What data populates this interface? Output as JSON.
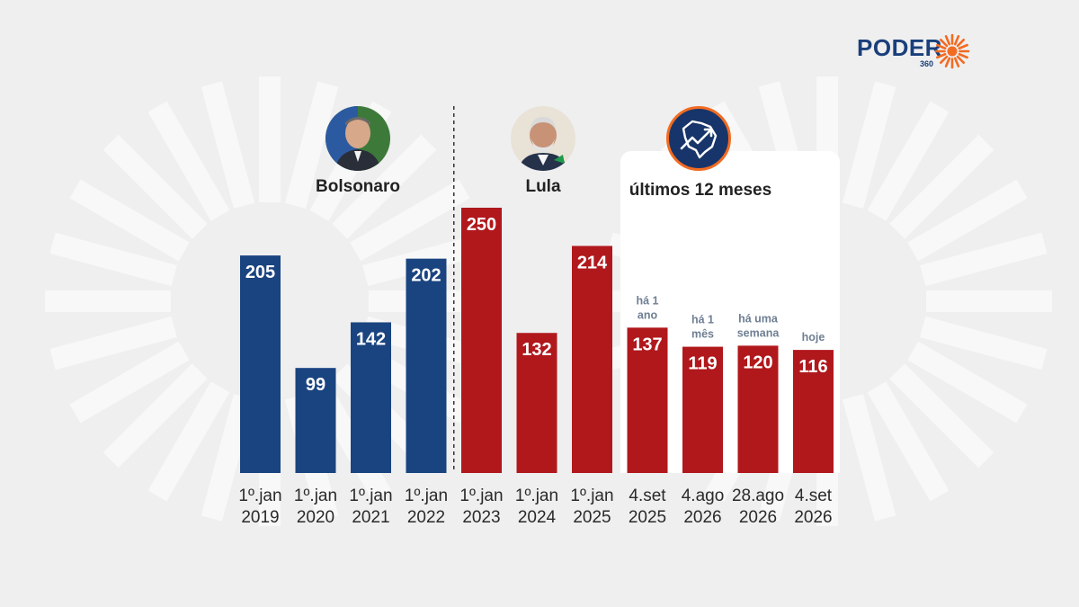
{
  "logo": {
    "brand": "PODER",
    "sub": "360",
    "accent_color": "#f26b22",
    "brand_color": "#1a3f7a"
  },
  "periods": {
    "bolsonaro": "Bolsonaro",
    "lula": "Lula",
    "recent": "últimos 12 meses"
  },
  "icons": {
    "bolsonaro_avatar": "bolsonaro-portrait-icon",
    "lula_avatar": "lula-portrait-icon",
    "map": "brazil-map-trend-icon"
  },
  "chart_data": {
    "type": "bar",
    "categories": [
      [
        "1º.jan",
        "2019"
      ],
      [
        "1º.jan",
        "2020"
      ],
      [
        "1º.jan",
        "2021"
      ],
      [
        "1º.jan",
        "2022"
      ],
      [
        "1º.jan",
        "2023"
      ],
      [
        "1º.jan",
        "2024"
      ],
      [
        "1º.jan",
        "2025"
      ],
      [
        "4.set",
        "2025"
      ],
      [
        "4.ago",
        "2026"
      ],
      [
        "28.ago",
        "2026"
      ],
      [
        "4.set",
        "2026"
      ]
    ],
    "values": [
      205,
      99,
      142,
      202,
      250,
      132,
      214,
      137,
      119,
      120,
      116
    ],
    "annotations": [
      [],
      [],
      [],
      [],
      [],
      [],
      [],
      [
        "há 1",
        "ano"
      ],
      [
        "há 1",
        "mês"
      ],
      [
        "há uma",
        "semana"
      ],
      [
        "hoje"
      ]
    ],
    "bar_colors": [
      "#1a4480",
      "#1a4480",
      "#1a4480",
      "#1a4480",
      "#b0181c",
      "#b0181c",
      "#b0181c",
      "#b0181c",
      "#b0181c",
      "#b0181c",
      "#b0181c"
    ],
    "ylim": [
      0,
      250
    ],
    "grid": false,
    "divider_after_index": 3
  }
}
